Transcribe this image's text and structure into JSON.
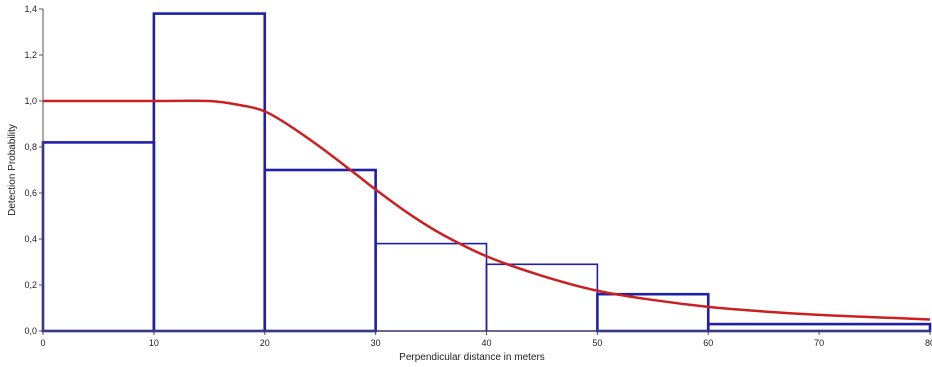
{
  "chart_data": {
    "type": "bar",
    "xlabel": "Perpendicular distance in meters",
    "ylabel": "Detection Probability",
    "xlim": [
      0,
      80
    ],
    "ylim": [
      0,
      1.4
    ],
    "x_ticks": [
      "0",
      "10",
      "20",
      "30",
      "40",
      "50",
      "60",
      "70",
      "80"
    ],
    "y_ticks": [
      "0,0",
      "0,2",
      "0,4",
      "0,6",
      "0,8",
      "1,0",
      "1,2",
      "1,4"
    ],
    "grid": false,
    "legend": "none",
    "histogram": {
      "bins": [
        [
          0,
          10
        ],
        [
          10,
          20
        ],
        [
          20,
          30
        ],
        [
          30,
          40
        ],
        [
          40,
          50
        ],
        [
          50,
          60
        ],
        [
          60,
          80
        ]
      ],
      "values": [
        0.82,
        1.38,
        0.7,
        0.38,
        0.29,
        0.16,
        0.03
      ],
      "color": "#1f1fa8"
    },
    "fitted_curve": {
      "type": "line",
      "color": "#cc2020",
      "x": [
        0,
        5,
        10,
        15,
        18,
        20,
        22,
        25,
        28,
        30,
        33,
        36,
        40,
        45,
        50,
        55,
        60,
        65,
        70,
        75,
        80
      ],
      "y": [
        1.0,
        1.0,
        1.0,
        1.0,
        0.98,
        0.955,
        0.9,
        0.8,
        0.69,
        0.615,
        0.51,
        0.42,
        0.325,
        0.24,
        0.175,
        0.135,
        0.105,
        0.085,
        0.07,
        0.06,
        0.05
      ]
    }
  }
}
